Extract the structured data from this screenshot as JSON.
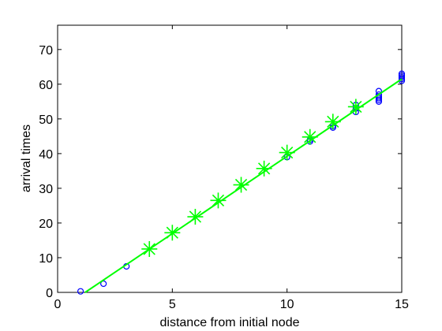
{
  "chart_data": {
    "type": "scatter",
    "xlabel": "distance from initial node",
    "ylabel": "arrival times",
    "xlim": [
      0,
      15
    ],
    "ylim": [
      0,
      77
    ],
    "xticks": [
      0,
      5,
      10,
      15
    ],
    "yticks": [
      0,
      10,
      20,
      30,
      40,
      50,
      60,
      70
    ],
    "series": [
      {
        "marker": "o",
        "color": "#0000ff",
        "x": [
          1,
          2,
          3,
          10,
          11,
          11,
          12,
          12,
          13,
          13,
          13,
          14,
          14,
          14,
          14,
          14,
          14,
          15,
          15,
          15,
          15,
          15
        ],
        "values": [
          0.3,
          2.5,
          7.5,
          39,
          43.5,
          44,
          47.5,
          48,
          52,
          53,
          54,
          55,
          55.5,
          56,
          56.5,
          57,
          58,
          61,
          61.5,
          62,
          62.5,
          63
        ]
      },
      {
        "marker": "*",
        "color": "#00ff00",
        "x": [
          4,
          5,
          6,
          7,
          8,
          9,
          10,
          11,
          12,
          13
        ],
        "values": [
          12.5,
          17.2,
          21.8,
          26.5,
          31,
          35.7,
          40.3,
          44.8,
          49.2,
          53.5
        ]
      },
      {
        "marker": "line",
        "color": "#00ff00",
        "x": [
          1.2,
          15
        ],
        "values": [
          0,
          61.5
        ]
      }
    ]
  }
}
